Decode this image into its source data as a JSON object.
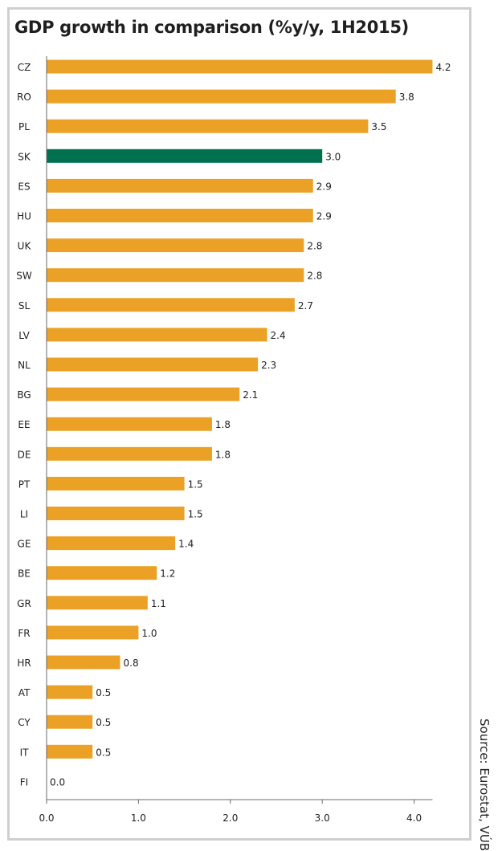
{
  "chart_data": {
    "type": "bar",
    "orientation": "horizontal",
    "title": "GDP growth in comparison (%y/y, 1H2015)",
    "categories": [
      "CZ",
      "RO",
      "PL",
      "SK",
      "ES",
      "HU",
      "UK",
      "SW",
      "SL",
      "LV",
      "NL",
      "BG",
      "EE",
      "DE",
      "PT",
      "LI",
      "GE",
      "BE",
      "GR",
      "FR",
      "HR",
      "AT",
      "CY",
      "IT",
      "FI"
    ],
    "values": [
      4.2,
      3.8,
      3.5,
      3.0,
      2.9,
      2.9,
      2.8,
      2.8,
      2.7,
      2.4,
      2.3,
      2.1,
      1.8,
      1.8,
      1.5,
      1.5,
      1.4,
      1.2,
      1.1,
      1.0,
      0.8,
      0.5,
      0.5,
      0.5,
      0.0
    ],
    "value_labels": [
      "4.2",
      "3.8",
      "3.5",
      "3.0",
      "2.9",
      "2.9",
      "2.8",
      "2.8",
      "2.7",
      "2.4",
      "2.3",
      "2.1",
      "1.8",
      "1.8",
      "1.5",
      "1.5",
      "1.4",
      "1.2",
      "1.1",
      "1.0",
      "0.8",
      "0.5",
      "0.5",
      "0.5",
      "0.0"
    ],
    "highlight": "SK",
    "xlim": [
      0,
      4.2
    ],
    "xticks": [
      "0.0",
      "1.0",
      "2.0",
      "3.0",
      "4.0"
    ],
    "grid": false,
    "colors": {
      "bar": "#eba125",
      "highlight": "#00704f",
      "axis": "#6a6a6a",
      "text": "#222222"
    }
  },
  "source": "Source: Eurostat, VÚB"
}
